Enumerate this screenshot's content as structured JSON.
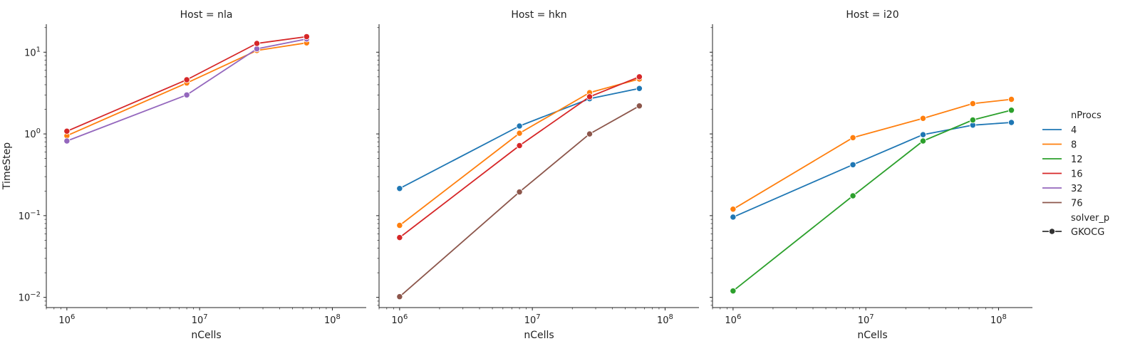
{
  "chart_data": {
    "type": "line",
    "x_scale": "log",
    "y_scale": "log",
    "sharey": true,
    "xlim": [
      700000,
      180000000
    ],
    "ylim": [
      0.0075,
      22
    ],
    "x_ticks": [
      {
        "value": 1000000,
        "base": "10",
        "exp": "6"
      },
      {
        "value": 10000000,
        "base": "10",
        "exp": "7"
      },
      {
        "value": 100000000,
        "base": "10",
        "exp": "8"
      }
    ],
    "y_ticks": [
      {
        "value": 0.01,
        "base": "10",
        "exp": "−2"
      },
      {
        "value": 0.1,
        "base": "10",
        "exp": "−1"
      },
      {
        "value": 1,
        "base": "10",
        "exp": "0"
      },
      {
        "value": 10,
        "base": "10",
        "exp": "1"
      }
    ],
    "xlabel": "nCells",
    "ylabel": "TimeStep",
    "grid": false,
    "legend": {
      "placement": "right",
      "hue_title": "nProcs",
      "style_title": "solver_p",
      "style_entries": [
        {
          "label": "GKOCG",
          "marker": "circle"
        }
      ]
    },
    "hue": {
      "4": "#1f77b4",
      "8": "#ff7f0e",
      "12": "#2ca02c",
      "16": "#d62728",
      "32": "#9467bd",
      "76": "#8c564b"
    },
    "hue_order": [
      "4",
      "8",
      "12",
      "16",
      "32",
      "76"
    ],
    "panels": [
      {
        "title": "Host = nla",
        "series": [
          {
            "name": "8",
            "x": [
              1000000,
              8000000,
              27000000,
              64000000
            ],
            "y": [
              0.95,
              4.2,
              10.5,
              13.0
            ]
          },
          {
            "name": "32",
            "x": [
              1000000,
              8000000,
              27000000,
              64000000
            ],
            "y": [
              0.82,
              3.0,
              11.0,
              14.5
            ]
          },
          {
            "name": "16",
            "x": [
              1000000,
              8000000,
              27000000,
              64000000
            ],
            "y": [
              1.08,
              4.6,
              12.8,
              15.5
            ]
          }
        ]
      },
      {
        "title": "Host = hkn",
        "series": [
          {
            "name": "4",
            "x": [
              1000000,
              8000000,
              27000000,
              64000000
            ],
            "y": [
              0.215,
              1.25,
              2.7,
              3.6
            ]
          },
          {
            "name": "8",
            "x": [
              1000000,
              8000000,
              27000000,
              64000000
            ],
            "y": [
              0.076,
              1.02,
              3.2,
              4.7
            ]
          },
          {
            "name": "16",
            "x": [
              1000000,
              8000000,
              27000000,
              64000000
            ],
            "y": [
              0.054,
              0.72,
              2.85,
              5.0
            ]
          },
          {
            "name": "76",
            "x": [
              1000000,
              8000000,
              27000000,
              64000000
            ],
            "y": [
              0.0102,
              0.195,
              1.0,
              2.2
            ]
          }
        ]
      },
      {
        "title": "Host = i20",
        "series": [
          {
            "name": "4",
            "x": [
              1000000,
              8000000,
              27000000,
              64000000,
              125000000
            ],
            "y": [
              0.096,
              0.42,
              0.98,
              1.28,
              1.38
            ]
          },
          {
            "name": "8",
            "x": [
              1000000,
              8000000,
              27000000,
              64000000,
              125000000
            ],
            "y": [
              0.12,
              0.9,
              1.55,
              2.35,
              2.65
            ]
          },
          {
            "name": "12",
            "x": [
              1000000,
              8000000,
              27000000,
              64000000,
              125000000
            ],
            "y": [
              0.012,
              0.175,
              0.82,
              1.48,
              1.95
            ]
          }
        ]
      }
    ]
  }
}
